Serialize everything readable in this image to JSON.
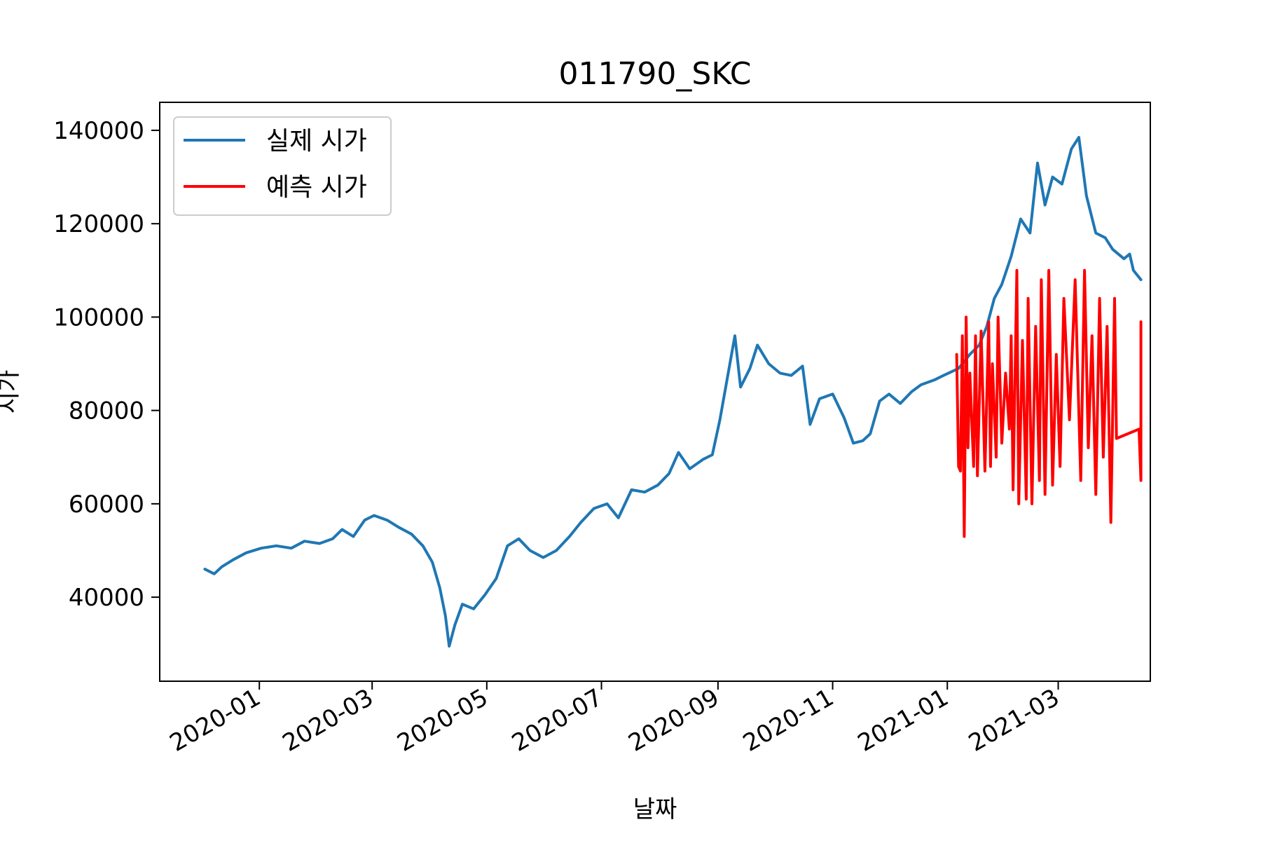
{
  "chart_data": {
    "type": "line",
    "title": "011790_SKC",
    "xlabel": "날짜",
    "ylabel": "시가",
    "xlim": [
      "2019-11-09",
      "2021-04-19"
    ],
    "ylim": [
      22000,
      146000
    ],
    "x_ticks": [
      "2020-01",
      "2020-03",
      "2020-05",
      "2020-07",
      "2020-09",
      "2020-11",
      "2021-01",
      "2021-03"
    ],
    "y_ticks": [
      40000,
      60000,
      80000,
      100000,
      120000,
      140000
    ],
    "legend": {
      "placement": "top-left"
    },
    "grid": false,
    "series": [
      {
        "name": "실제 시가",
        "color": "#1f77b4",
        "points": [
          [
            "2019-12-03",
            46000
          ],
          [
            "2019-12-08",
            45000
          ],
          [
            "2019-12-12",
            46500
          ],
          [
            "2019-12-18",
            48000
          ],
          [
            "2019-12-25",
            49500
          ],
          [
            "2020-01-02",
            50500
          ],
          [
            "2020-01-10",
            51000
          ],
          [
            "2020-01-18",
            50500
          ],
          [
            "2020-01-25",
            52000
          ],
          [
            "2020-02-02",
            51500
          ],
          [
            "2020-02-09",
            52500
          ],
          [
            "2020-02-14",
            54500
          ],
          [
            "2020-02-20",
            53000
          ],
          [
            "2020-02-26",
            56500
          ],
          [
            "2020-03-02",
            57500
          ],
          [
            "2020-03-09",
            56500
          ],
          [
            "2020-03-15",
            55000
          ],
          [
            "2020-03-22",
            53500
          ],
          [
            "2020-03-28",
            51000
          ],
          [
            "2020-04-02",
            47500
          ],
          [
            "2020-04-06",
            42000
          ],
          [
            "2020-04-09",
            36000
          ],
          [
            "2020-04-11",
            29500
          ],
          [
            "2020-04-14",
            34000
          ],
          [
            "2020-04-18",
            38500
          ],
          [
            "2020-04-24",
            37500
          ],
          [
            "2020-04-30",
            40500
          ],
          [
            "2020-05-06",
            44000
          ],
          [
            "2020-05-12",
            51000
          ],
          [
            "2020-05-18",
            52500
          ],
          [
            "2020-05-24",
            50000
          ],
          [
            "2020-05-31",
            48500
          ],
          [
            "2020-06-07",
            50000
          ],
          [
            "2020-06-14",
            53000
          ],
          [
            "2020-06-20",
            56000
          ],
          [
            "2020-06-27",
            59000
          ],
          [
            "2020-07-04",
            60000
          ],
          [
            "2020-07-10",
            57000
          ],
          [
            "2020-07-17",
            63000
          ],
          [
            "2020-07-24",
            62500
          ],
          [
            "2020-07-31",
            64000
          ],
          [
            "2020-08-06",
            66500
          ],
          [
            "2020-08-11",
            71000
          ],
          [
            "2020-08-17",
            67500
          ],
          [
            "2020-08-24",
            69500
          ],
          [
            "2020-08-29",
            70500
          ],
          [
            "2020-09-02",
            78000
          ],
          [
            "2020-09-06",
            87000
          ],
          [
            "2020-09-10",
            96000
          ],
          [
            "2020-09-13",
            85000
          ],
          [
            "2020-09-18",
            89000
          ],
          [
            "2020-09-22",
            94000
          ],
          [
            "2020-09-28",
            90000
          ],
          [
            "2020-10-04",
            88000
          ],
          [
            "2020-10-10",
            87500
          ],
          [
            "2020-10-16",
            89500
          ],
          [
            "2020-10-20",
            77000
          ],
          [
            "2020-10-25",
            82500
          ],
          [
            "2020-11-01",
            83500
          ],
          [
            "2020-11-07",
            78500
          ],
          [
            "2020-11-12",
            73000
          ],
          [
            "2020-11-17",
            73500
          ],
          [
            "2020-11-21",
            75000
          ],
          [
            "2020-11-26",
            82000
          ],
          [
            "2020-12-01",
            83500
          ],
          [
            "2020-12-07",
            81500
          ],
          [
            "2020-12-13",
            84000
          ],
          [
            "2020-12-18",
            85500
          ],
          [
            "2020-12-25",
            86500
          ],
          [
            "2020-12-30",
            87500
          ],
          [
            "2021-01-07",
            89000
          ],
          [
            "2021-01-13",
            92000
          ],
          [
            "2021-01-18",
            94000
          ],
          [
            "2021-01-22",
            98000
          ],
          [
            "2021-01-26",
            104000
          ],
          [
            "2021-01-30",
            107000
          ],
          [
            "2021-02-04",
            113000
          ],
          [
            "2021-02-09",
            121000
          ],
          [
            "2021-02-14",
            118000
          ],
          [
            "2021-02-18",
            133000
          ],
          [
            "2021-02-22",
            124000
          ],
          [
            "2021-02-26",
            130000
          ],
          [
            "2021-03-03",
            128500
          ],
          [
            "2021-03-08",
            136000
          ],
          [
            "2021-03-12",
            138500
          ],
          [
            "2021-03-16",
            126000
          ],
          [
            "2021-03-21",
            118000
          ],
          [
            "2021-03-26",
            117000
          ],
          [
            "2021-03-30",
            114500
          ],
          [
            "2021-04-05",
            112500
          ],
          [
            "2021-04-08",
            113500
          ],
          [
            "2021-04-10",
            110000
          ],
          [
            "2021-04-14",
            108000
          ]
        ]
      },
      {
        "name": "예측 시가",
        "color": "#ff0000",
        "points": [
          [
            "2021-01-06",
            92000
          ],
          [
            "2021-01-07",
            68000
          ],
          [
            "2021-01-08",
            67000
          ],
          [
            "2021-01-09",
            96000
          ],
          [
            "2021-01-10",
            53000
          ],
          [
            "2021-01-11",
            100000
          ],
          [
            "2021-01-12",
            72000
          ],
          [
            "2021-01-13",
            88000
          ],
          [
            "2021-01-15",
            68000
          ],
          [
            "2021-01-16",
            96000
          ],
          [
            "2021-01-17",
            66000
          ],
          [
            "2021-01-19",
            97000
          ],
          [
            "2021-01-21",
            67000
          ],
          [
            "2021-01-23",
            99000
          ],
          [
            "2021-01-24",
            68000
          ],
          [
            "2021-01-25",
            90000
          ],
          [
            "2021-01-27",
            70000
          ],
          [
            "2021-01-28",
            100000
          ],
          [
            "2021-01-30",
            73000
          ],
          [
            "2021-02-01",
            88000
          ],
          [
            "2021-02-03",
            76000
          ],
          [
            "2021-02-04",
            96000
          ],
          [
            "2021-02-05",
            63000
          ],
          [
            "2021-02-07",
            110000
          ],
          [
            "2021-02-08",
            60000
          ],
          [
            "2021-02-10",
            95000
          ],
          [
            "2021-02-12",
            61000
          ],
          [
            "2021-02-13",
            104000
          ],
          [
            "2021-02-15",
            60000
          ],
          [
            "2021-02-17",
            98000
          ],
          [
            "2021-02-19",
            65000
          ],
          [
            "2021-02-20",
            108000
          ],
          [
            "2021-02-22",
            62000
          ],
          [
            "2021-02-24",
            110000
          ],
          [
            "2021-02-26",
            64000
          ],
          [
            "2021-02-28",
            92000
          ],
          [
            "2021-03-02",
            68000
          ],
          [
            "2021-03-04",
            104000
          ],
          [
            "2021-03-07",
            78000
          ],
          [
            "2021-03-10",
            108000
          ],
          [
            "2021-03-13",
            65000
          ],
          [
            "2021-03-15",
            110000
          ],
          [
            "2021-03-17",
            72000
          ],
          [
            "2021-03-19",
            96000
          ],
          [
            "2021-03-21",
            62000
          ],
          [
            "2021-03-23",
            104000
          ],
          [
            "2021-03-25",
            70000
          ],
          [
            "2021-03-27",
            98000
          ],
          [
            "2021-03-29",
            56000
          ],
          [
            "2021-03-31",
            104000
          ],
          [
            "2021-04-01",
            74000
          ],
          [
            "2021-04-13",
            76000
          ],
          [
            "2021-04-14",
            65000
          ],
          [
            "2021-04-14",
            99000
          ]
        ]
      }
    ]
  }
}
